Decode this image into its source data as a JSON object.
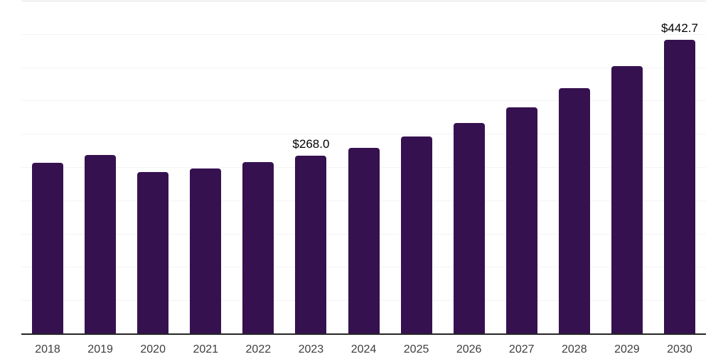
{
  "chart_data": {
    "type": "bar",
    "title": "",
    "xlabel": "",
    "ylabel": "",
    "categories": [
      "2018",
      "2019",
      "2020",
      "2021",
      "2022",
      "2023",
      "2024",
      "2025",
      "2026",
      "2027",
      "2028",
      "2029",
      "2030"
    ],
    "values": [
      258.0,
      269.4,
      244.0,
      249.3,
      258.9,
      268.0,
      280.2,
      297.2,
      317.5,
      340.9,
      369.7,
      402.7,
      442.7
    ],
    "data_labels": [
      "",
      "",
      "",
      "",
      "",
      "$268.0",
      "",
      "",
      "",
      "",
      "",
      "",
      "$442.7"
    ],
    "value_prefix": "$",
    "ylim": [
      0,
      500
    ],
    "grid_step": 50,
    "grid": "horizontal",
    "legend": "none"
  },
  "colors": {
    "background": "#ffffff",
    "bar": "#361150",
    "axis_line": "#262626",
    "gridline": "#f4f4f4",
    "top_gridline": "#e0e0e0",
    "tick_label": "#3d3d3d",
    "value_label": "#000000"
  }
}
